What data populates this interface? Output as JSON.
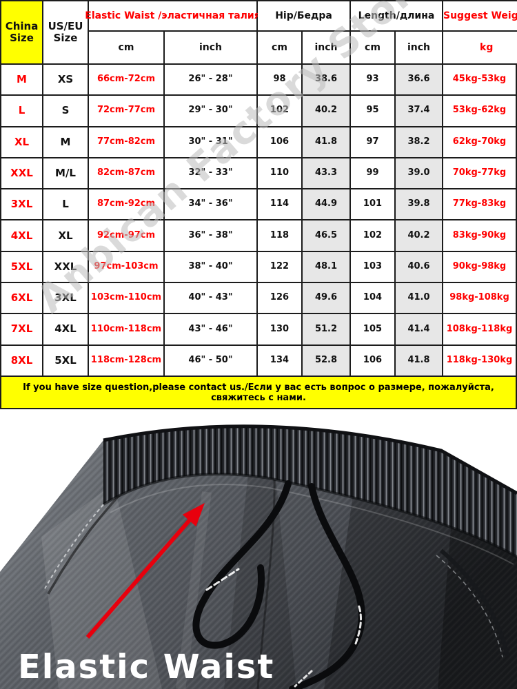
{
  "watermark": "Anbican Factory Store",
  "table": {
    "header": {
      "china_size": "China Size",
      "us_eu_size": "US/EU Size",
      "elastic_waist": "Elastic Waist /эластичная талия",
      "hip": "Hip/Бедра",
      "length": "Length/длина",
      "suggest_weight": "Suggest Weight",
      "unit_cm": "cm",
      "unit_inch": "inch",
      "unit_kg": "kg"
    },
    "columns": [
      {
        "key": "china"
      },
      {
        "key": "useu"
      },
      {
        "key": "waist_cm"
      },
      {
        "key": "waist_inch"
      },
      {
        "key": "hip_cm"
      },
      {
        "key": "hip_inch"
      },
      {
        "key": "len_cm"
      },
      {
        "key": "len_inch"
      },
      {
        "key": "weight"
      }
    ],
    "rows": [
      {
        "china": "M",
        "useu": "XS",
        "waist_cm": "66cm-72cm",
        "waist_inch": "26\" - 28\"",
        "hip_cm": "98",
        "hip_inch": "38.6",
        "len_cm": "93",
        "len_inch": "36.6",
        "weight": "45kg-53kg"
      },
      {
        "china": "L",
        "useu": "S",
        "waist_cm": "72cm-77cm",
        "waist_inch": "29\" - 30\"",
        "hip_cm": "102",
        "hip_inch": "40.2",
        "len_cm": "95",
        "len_inch": "37.4",
        "weight": "53kg-62kg"
      },
      {
        "china": "XL",
        "useu": "M",
        "waist_cm": "77cm-82cm",
        "waist_inch": "30\" - 31\"",
        "hip_cm": "106",
        "hip_inch": "41.8",
        "len_cm": "97",
        "len_inch": "38.2",
        "weight": "62kg-70kg"
      },
      {
        "china": "XXL",
        "useu": "M/L",
        "waist_cm": "82cm-87cm",
        "waist_inch": "32\" - 33\"",
        "hip_cm": "110",
        "hip_inch": "43.3",
        "len_cm": "99",
        "len_inch": "39.0",
        "weight": "70kg-77kg"
      },
      {
        "china": "3XL",
        "useu": "L",
        "waist_cm": "87cm-92cm",
        "waist_inch": "34\" - 36\"",
        "hip_cm": "114",
        "hip_inch": "44.9",
        "len_cm": "101",
        "len_inch": "39.8",
        "weight": "77kg-83kg"
      },
      {
        "china": "4XL",
        "useu": "XL",
        "waist_cm": "92cm-97cm",
        "waist_inch": "36\" - 38\"",
        "hip_cm": "118",
        "hip_inch": "46.5",
        "len_cm": "102",
        "len_inch": "40.2",
        "weight": "83kg-90kg"
      },
      {
        "china": "5XL",
        "useu": "XXL",
        "waist_cm": "97cm-103cm",
        "waist_inch": "38\" - 40\"",
        "hip_cm": "122",
        "hip_inch": "48.1",
        "len_cm": "103",
        "len_inch": "40.6",
        "weight": "90kg-98kg"
      },
      {
        "china": "6XL",
        "useu": "3XL",
        "waist_cm": "103cm-110cm",
        "waist_inch": "40\" - 43\"",
        "hip_cm": "126",
        "hip_inch": "49.6",
        "len_cm": "104",
        "len_inch": "41.0",
        "weight": "98kg-108kg"
      },
      {
        "china": "7XL",
        "useu": "4XL",
        "waist_cm": "110cm-118cm",
        "waist_inch": "43\" - 46\"",
        "hip_cm": "130",
        "hip_inch": "51.2",
        "len_cm": "105",
        "len_inch": "41.4",
        "weight": "108kg-118kg"
      },
      {
        "china": "8XL",
        "useu": "5XL",
        "waist_cm": "118cm-128cm",
        "waist_inch": "46\" - 50\"",
        "hip_cm": "134",
        "hip_inch": "52.8",
        "len_cm": "106",
        "len_inch": "41.8",
        "weight": "118kg-130kg"
      }
    ]
  },
  "notice": "If you have size question,please contact us./Если у вас есть вопрос о размере, пожалуйста, свяжитесь с нами.",
  "photo": {
    "caption": "Elastic Waist"
  },
  "colors": {
    "accent_red": "#ff0000",
    "header_yellow": "#ffff00",
    "notice_yellow": "#ffff00",
    "gray_cell": "#e7e7e7",
    "border_dark": "#1c1c1c",
    "arrow_red": "#e8000d",
    "caption_white": "#ffffff",
    "watermark_gray": "#bdbdbd"
  }
}
